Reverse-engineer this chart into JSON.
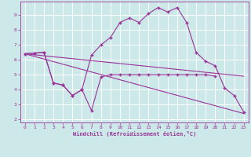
{
  "xlabel": "Windchill (Refroidissement éolien,°C)",
  "bg_color": "#cce8e8",
  "line_color": "#993399",
  "grid_color": "#ffffff",
  "ylim": [
    1.8,
    9.9
  ],
  "xlim": [
    -0.5,
    23.5
  ],
  "yticks": [
    2,
    3,
    4,
    5,
    6,
    7,
    8,
    9
  ],
  "xticks": [
    0,
    1,
    2,
    3,
    4,
    5,
    6,
    7,
    8,
    9,
    10,
    11,
    12,
    13,
    14,
    15,
    16,
    17,
    18,
    19,
    20,
    21,
    22,
    23
  ],
  "line_zigzag": {
    "x": [
      0,
      1,
      2,
      3,
      4,
      5,
      6,
      7,
      8,
      9,
      10,
      11,
      12,
      13,
      14,
      15,
      16,
      17,
      18,
      19,
      20
    ],
    "y": [
      6.4,
      6.45,
      6.5,
      4.45,
      4.3,
      3.6,
      4.0,
      2.6,
      4.85,
      5.0,
      5.0,
      5.0,
      5.0,
      5.0,
      5.0,
      5.0,
      5.0,
      5.0,
      5.0,
      5.0,
      4.9
    ]
  },
  "line_curve": {
    "x": [
      0,
      1,
      2,
      3,
      4,
      5,
      6,
      7,
      8,
      9,
      10,
      11,
      12,
      13,
      14,
      15,
      16,
      17,
      18,
      19,
      20,
      21,
      22,
      23
    ],
    "y": [
      6.4,
      6.45,
      6.5,
      4.45,
      4.3,
      3.6,
      4.0,
      6.3,
      7.0,
      7.5,
      8.5,
      8.8,
      8.5,
      9.1,
      9.5,
      9.2,
      9.5,
      8.5,
      6.5,
      5.9,
      5.6,
      4.1,
      3.6,
      2.5
    ]
  },
  "line_top": {
    "x": [
      0,
      23
    ],
    "y": [
      6.4,
      4.9
    ]
  },
  "line_bottom": {
    "x": [
      0,
      23
    ],
    "y": [
      6.4,
      2.4
    ]
  }
}
